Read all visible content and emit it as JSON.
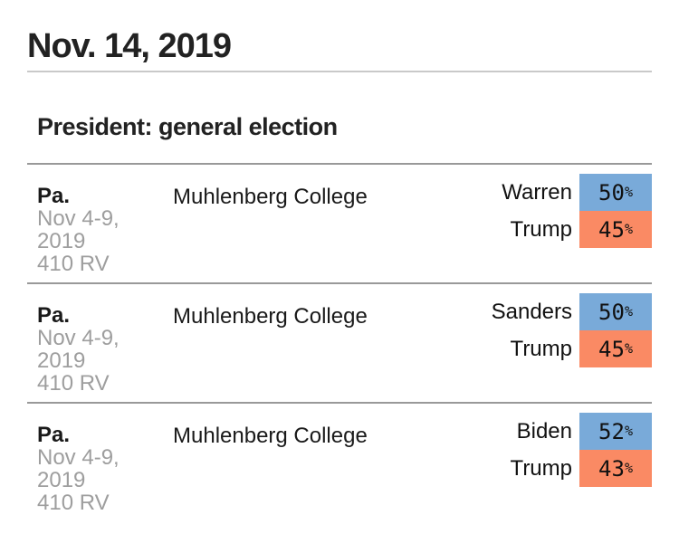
{
  "header": {
    "date": "Nov. 14, 2019",
    "section_title": "President: general election"
  },
  "percent_sign": "%",
  "colors": {
    "dem_chip": "#79aad9",
    "rep_chip": "#fa8a64",
    "muted_text": "#9e9e9e",
    "date_rule": "#c9c9c9",
    "row_rule": "#999999"
  },
  "polls": [
    {
      "state": "Pa.",
      "dates": "Nov 4-9, 2019",
      "sample": "410 RV",
      "pollster": "Muhlenberg College",
      "results": [
        {
          "candidate": "Warren",
          "value": "50",
          "party": "dem"
        },
        {
          "candidate": "Trump",
          "value": "45",
          "party": "rep"
        }
      ]
    },
    {
      "state": "Pa.",
      "dates": "Nov 4-9, 2019",
      "sample": "410 RV",
      "pollster": "Muhlenberg College",
      "results": [
        {
          "candidate": "Sanders",
          "value": "50",
          "party": "dem"
        },
        {
          "candidate": "Trump",
          "value": "45",
          "party": "rep"
        }
      ]
    },
    {
      "state": "Pa.",
      "dates": "Nov 4-9, 2019",
      "sample": "410 RV",
      "pollster": "Muhlenberg College",
      "results": [
        {
          "candidate": "Biden",
          "value": "52",
          "party": "dem"
        },
        {
          "candidate": "Trump",
          "value": "43",
          "party": "rep"
        }
      ]
    }
  ]
}
